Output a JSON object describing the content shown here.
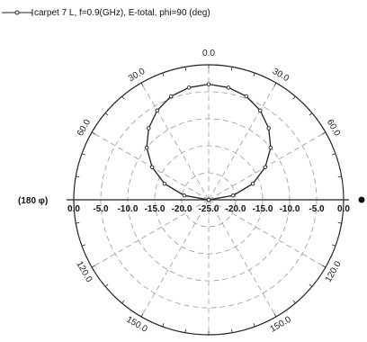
{
  "chart_data": {
    "type": "polar-line",
    "series": [
      {
        "name": "carpet 7 L, f=0.9(GHz), E-total, phi=90 (deg)",
        "color": "#222222",
        "marker": "circle"
      }
    ],
    "radial_ticks": [
      "0.0",
      "-5.0",
      "-10.0",
      "-15.0",
      "-20.0",
      "-25.0"
    ],
    "radial_range": [
      -25,
      0
    ],
    "angle_labels": {
      "top": "0.0",
      "left_axis": "(180 φ)",
      "ring": [
        "30.0",
        "60.0",
        "30.0",
        "60.0",
        "120.0",
        "150.0",
        "120.0",
        "150.0"
      ]
    },
    "pattern": {
      "description_values_db": "roughly circular lobe centered above origin",
      "theta_deg": [
        -90,
        -80,
        -70,
        -60,
        -50,
        -40,
        -30,
        -20,
        -10,
        0,
        10,
        20,
        30,
        40,
        50,
        60,
        70,
        80,
        90
      ],
      "r_db": [
        -25,
        -20.4,
        -16.3,
        -12.9,
        -10.0,
        -7.7,
        -5.9,
        -4.6,
        -3.9,
        -3.6,
        -3.9,
        -4.6,
        -5.9,
        -7.7,
        -10.0,
        -12.9,
        -16.3,
        -20.4,
        -25
      ]
    },
    "grid": true,
    "legend_position": "top-left"
  }
}
